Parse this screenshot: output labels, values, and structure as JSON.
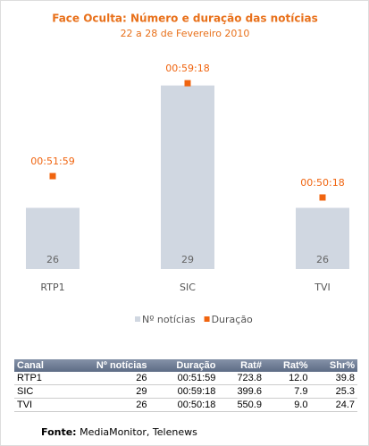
{
  "chart_data": {
    "type": "bar_marker",
    "title": "Face Oculta: Número e duração das notícias",
    "subtitle": "22 a 28 de Fevereiro 2010",
    "categories": [
      "RTP1",
      "SIC",
      "TVI"
    ],
    "ylim": [
      24.5,
      30
    ],
    "y2lim": [
      2680,
      3740
    ],
    "series": [
      {
        "name": "Nº notícias",
        "color": "#d0d7e1",
        "values": [
          26,
          29,
          26
        ]
      },
      {
        "name": "Duração",
        "color": "#f0640f",
        "axis": "y2",
        "values": [
          3119,
          3558,
          3018
        ],
        "value_labels": [
          "00:51:59",
          "00:59:18",
          "00:50:18"
        ]
      }
    ]
  },
  "table": {
    "columns": [
      "Canal",
      "Nº notícias",
      "Duração",
      "Rat#",
      "Rat%",
      "Shr%"
    ],
    "rows": [
      [
        "RTP1",
        "26",
        "00:51:59",
        "723.8",
        "12.0",
        "39.8"
      ],
      [
        "SIC",
        "29",
        "00:59:18",
        "399.6",
        "7.9",
        "25.3"
      ],
      [
        "TVI",
        "26",
        "00:50:18",
        "550.9",
        "9.0",
        "24.7"
      ]
    ]
  },
  "source": {
    "label": "Fonte:",
    "text": "MediaMonitor, Telenews"
  }
}
